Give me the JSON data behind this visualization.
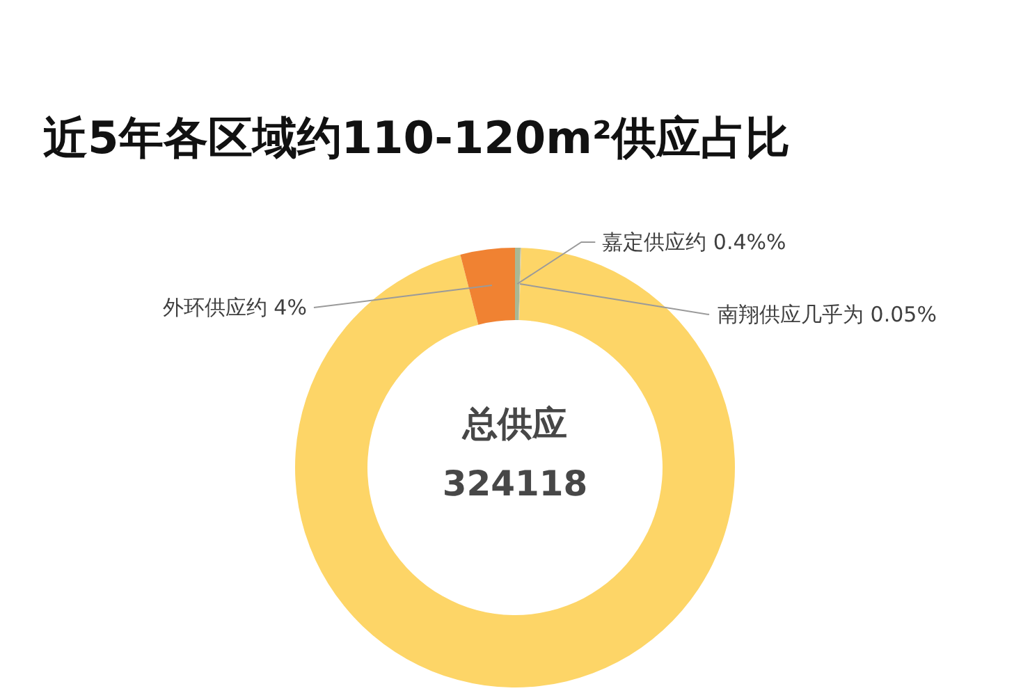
{
  "chart_data": {
    "type": "donut",
    "title": "近5年各区域约110-120m²供应占比",
    "categories": [
      "嘉定供应约 0.4%%",
      "南翔供应几乎为 0.05%",
      null,
      "外环供应约 4%"
    ],
    "values": [
      0.4,
      0.05,
      95.55,
      4
    ],
    "colors": [
      "#a9b894",
      "#c9c2a4",
      "#fdd567",
      "#f08232"
    ],
    "annotations": [
      "总供应",
      "324118"
    ]
  }
}
